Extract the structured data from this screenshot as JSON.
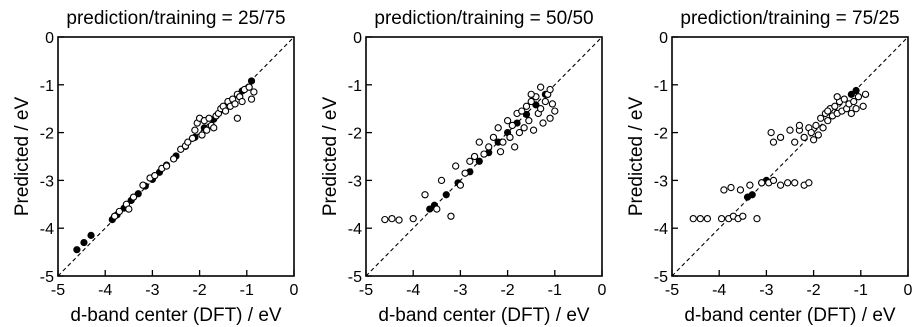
{
  "chart_data": [
    {
      "type": "scatter",
      "title": "prediction/training = 25/75",
      "xlabel": "d-band center (DFT) / eV",
      "ylabel": "Predicted / eV",
      "xlim": [
        -5,
        0
      ],
      "ylim": [
        -5,
        0
      ],
      "xticks": [
        "-5",
        "-4",
        "-3",
        "-2",
        "-1",
        "0"
      ],
      "yticks": [
        "-5",
        "-4",
        "-3",
        "-2",
        "-1",
        "0"
      ],
      "diagonal": true,
      "series": [
        {
          "marker": "filled",
          "points": [
            [
              -4.6,
              -4.45
            ],
            [
              -4.45,
              -4.3
            ],
            [
              -4.3,
              -4.15
            ],
            [
              -3.85,
              -3.82
            ],
            [
              -3.75,
              -3.72
            ],
            [
              -3.6,
              -3.58
            ],
            [
              -3.45,
              -3.42
            ],
            [
              -3.3,
              -3.28
            ],
            [
              -3.15,
              -3.12
            ],
            [
              -3.0,
              -2.98
            ],
            [
              -2.85,
              -2.83
            ],
            [
              -2.7,
              -2.68
            ],
            [
              -2.5,
              -2.49
            ],
            [
              -2.3,
              -2.29
            ],
            [
              -2.1,
              -2.1
            ],
            [
              -1.9,
              -1.9
            ],
            [
              -1.7,
              -1.72
            ],
            [
              -1.5,
              -1.52
            ],
            [
              -1.3,
              -1.33
            ],
            [
              -1.1,
              -1.13
            ],
            [
              -0.9,
              -0.92
            ]
          ]
        },
        {
          "marker": "open",
          "points": [
            [
              -3.8,
              -3.75
            ],
            [
              -3.7,
              -3.65
            ],
            [
              -3.55,
              -3.5
            ],
            [
              -3.5,
              -3.6
            ],
            [
              -3.4,
              -3.35
            ],
            [
              -3.2,
              -3.1
            ],
            [
              -3.05,
              -2.95
            ],
            [
              -2.95,
              -2.9
            ],
            [
              -2.8,
              -2.75
            ],
            [
              -2.7,
              -2.7
            ],
            [
              -2.55,
              -2.55
            ],
            [
              -2.4,
              -2.35
            ],
            [
              -2.3,
              -2.28
            ],
            [
              -2.25,
              -2.2
            ],
            [
              -2.15,
              -2.12
            ],
            [
              -2.1,
              -1.95
            ],
            [
              -2.05,
              -1.8
            ],
            [
              -2.0,
              -1.7
            ],
            [
              -1.95,
              -2.05
            ],
            [
              -1.9,
              -1.75
            ],
            [
              -1.85,
              -1.95
            ],
            [
              -1.8,
              -1.7
            ],
            [
              -1.75,
              -1.85
            ],
            [
              -1.7,
              -1.9
            ],
            [
              -1.65,
              -1.65
            ],
            [
              -1.6,
              -1.6
            ],
            [
              -1.55,
              -1.5
            ],
            [
              -1.5,
              -1.45
            ],
            [
              -1.45,
              -1.55
            ],
            [
              -1.4,
              -1.35
            ],
            [
              -1.35,
              -1.45
            ],
            [
              -1.3,
              -1.3
            ],
            [
              -1.25,
              -1.4
            ],
            [
              -1.2,
              -1.2
            ],
            [
              -1.15,
              -1.25
            ],
            [
              -1.1,
              -1.35
            ],
            [
              -1.05,
              -1.1
            ],
            [
              -1.2,
              -1.7
            ],
            [
              -0.95,
              -1.05
            ],
            [
              -0.9,
              -1.3
            ],
            [
              -0.85,
              -1.15
            ]
          ]
        }
      ]
    },
    {
      "type": "scatter",
      "title": "prediction/training = 50/50",
      "xlabel": "d-band center (DFT) / eV",
      "ylabel": "Predicted / eV",
      "xlim": [
        -5,
        0
      ],
      "ylim": [
        -5,
        0
      ],
      "xticks": [
        "-5",
        "-4",
        "-3",
        "-2",
        "-1",
        "0"
      ],
      "yticks": [
        "-5",
        "-4",
        "-3",
        "-2",
        "-1",
        "0"
      ],
      "diagonal": true,
      "series": [
        {
          "marker": "filled",
          "points": [
            [
              -3.65,
              -3.6
            ],
            [
              -3.55,
              -3.52
            ],
            [
              -3.3,
              -3.3
            ],
            [
              -3.05,
              -3.05
            ],
            [
              -2.8,
              -2.82
            ],
            [
              -2.6,
              -2.6
            ],
            [
              -2.4,
              -2.42
            ],
            [
              -2.2,
              -2.2
            ],
            [
              -2.0,
              -2.0
            ],
            [
              -1.8,
              -1.8
            ],
            [
              -1.6,
              -1.62
            ],
            [
              -1.4,
              -1.42
            ],
            [
              -1.2,
              -1.2
            ]
          ]
        },
        {
          "marker": "open",
          "points": [
            [
              -4.6,
              -3.82
            ],
            [
              -4.45,
              -3.8
            ],
            [
              -4.3,
              -3.83
            ],
            [
              -4.0,
              -3.8
            ],
            [
              -3.75,
              -3.3
            ],
            [
              -3.5,
              -3.6
            ],
            [
              -3.4,
              -3.0
            ],
            [
              -3.2,
              -3.75
            ],
            [
              -3.1,
              -2.7
            ],
            [
              -3.0,
              -3.1
            ],
            [
              -2.9,
              -2.85
            ],
            [
              -2.8,
              -2.6
            ],
            [
              -2.7,
              -2.5
            ],
            [
              -2.6,
              -2.2
            ],
            [
              -2.5,
              -2.45
            ],
            [
              -2.4,
              -2.3
            ],
            [
              -2.3,
              -2.1
            ],
            [
              -2.2,
              -1.9
            ],
            [
              -2.15,
              -2.4
            ],
            [
              -2.1,
              -2.2
            ],
            [
              -2.0,
              -1.75
            ],
            [
              -1.95,
              -2.1
            ],
            [
              -1.9,
              -1.85
            ],
            [
              -1.85,
              -2.3
            ],
            [
              -1.8,
              -1.6
            ],
            [
              -1.75,
              -2.0
            ],
            [
              -1.7,
              -1.55
            ],
            [
              -1.65,
              -1.9
            ],
            [
              -1.6,
              -1.45
            ],
            [
              -1.55,
              -1.75
            ],
            [
              -1.5,
              -1.35
            ],
            [
              -1.45,
              -1.95
            ],
            [
              -1.4,
              -1.25
            ],
            [
              -1.35,
              -1.6
            ],
            [
              -1.3,
              -1.5
            ],
            [
              -1.25,
              -1.8
            ],
            [
              -1.2,
              -1.35
            ],
            [
              -1.15,
              -1.2
            ],
            [
              -1.1,
              -1.1
            ],
            [
              -1.05,
              -1.4
            ],
            [
              -1.0,
              -1.55
            ],
            [
              -1.1,
              -1.7
            ],
            [
              -1.3,
              -1.05
            ],
            [
              -1.5,
              -1.2
            ]
          ]
        }
      ]
    },
    {
      "type": "scatter",
      "title": "prediction/training = 75/25",
      "xlabel": "d-band center (DFT) / eV",
      "ylabel": "Predicted / eV",
      "xlim": [
        -5,
        0
      ],
      "ylim": [
        -5,
        0
      ],
      "xticks": [
        "-5",
        "-4",
        "-3",
        "-2",
        "-1",
        "0"
      ],
      "yticks": [
        "-5",
        "-4",
        "-3",
        "-2",
        "-1",
        "0"
      ],
      "diagonal": true,
      "series": [
        {
          "marker": "filled",
          "points": [
            [
              -3.4,
              -3.35
            ],
            [
              -3.3,
              -3.3
            ],
            [
              -3.1,
              -3.05
            ],
            [
              -3.0,
              -3.0
            ],
            [
              -1.2,
              -1.2
            ],
            [
              -1.1,
              -1.12
            ]
          ]
        },
        {
          "marker": "open",
          "points": [
            [
              -4.55,
              -3.8
            ],
            [
              -4.4,
              -3.8
            ],
            [
              -4.25,
              -3.8
            ],
            [
              -3.95,
              -3.8
            ],
            [
              -3.8,
              -3.8
            ],
            [
              -3.7,
              -3.75
            ],
            [
              -3.6,
              -3.8
            ],
            [
              -3.5,
              -3.75
            ],
            [
              -3.2,
              -3.8
            ],
            [
              -3.9,
              -3.2
            ],
            [
              -3.75,
              -3.15
            ],
            [
              -3.55,
              -3.2
            ],
            [
              -3.35,
              -3.1
            ],
            [
              -3.1,
              -3.05
            ],
            [
              -2.95,
              -3.05
            ],
            [
              -2.85,
              -3.0
            ],
            [
              -2.7,
              -3.1
            ],
            [
              -2.55,
              -3.05
            ],
            [
              -2.4,
              -3.05
            ],
            [
              -2.2,
              -3.1
            ],
            [
              -2.1,
              -3.05
            ],
            [
              -2.9,
              -2.0
            ],
            [
              -2.85,
              -2.2
            ],
            [
              -2.7,
              -2.1
            ],
            [
              -2.5,
              -1.95
            ],
            [
              -2.4,
              -2.2
            ],
            [
              -2.3,
              -1.95
            ],
            [
              -2.2,
              -2.1
            ],
            [
              -2.1,
              -1.9
            ],
            [
              -2.05,
              -2.0
            ],
            [
              -2.0,
              -2.15
            ],
            [
              -1.95,
              -1.85
            ],
            [
              -1.9,
              -2.05
            ],
            [
              -1.85,
              -1.7
            ],
            [
              -1.8,
              -1.9
            ],
            [
              -1.75,
              -1.6
            ],
            [
              -1.7,
              -1.75
            ],
            [
              -1.65,
              -1.5
            ],
            [
              -1.6,
              -1.65
            ],
            [
              -1.55,
              -1.45
            ],
            [
              -1.5,
              -1.6
            ],
            [
              -1.45,
              -1.35
            ],
            [
              -1.4,
              -1.55
            ],
            [
              -1.35,
              -1.3
            ],
            [
              -1.3,
              -1.5
            ],
            [
              -1.25,
              -1.4
            ],
            [
              -1.2,
              -1.6
            ],
            [
              -1.15,
              -1.35
            ],
            [
              -1.1,
              -1.5
            ],
            [
              -1.05,
              -1.25
            ],
            [
              -0.95,
              -1.45
            ],
            [
              -0.9,
              -1.2
            ],
            [
              -1.5,
              -1.25
            ],
            [
              -1.7,
              -1.55
            ],
            [
              -2.3,
              -1.85
            ]
          ]
        }
      ]
    }
  ]
}
